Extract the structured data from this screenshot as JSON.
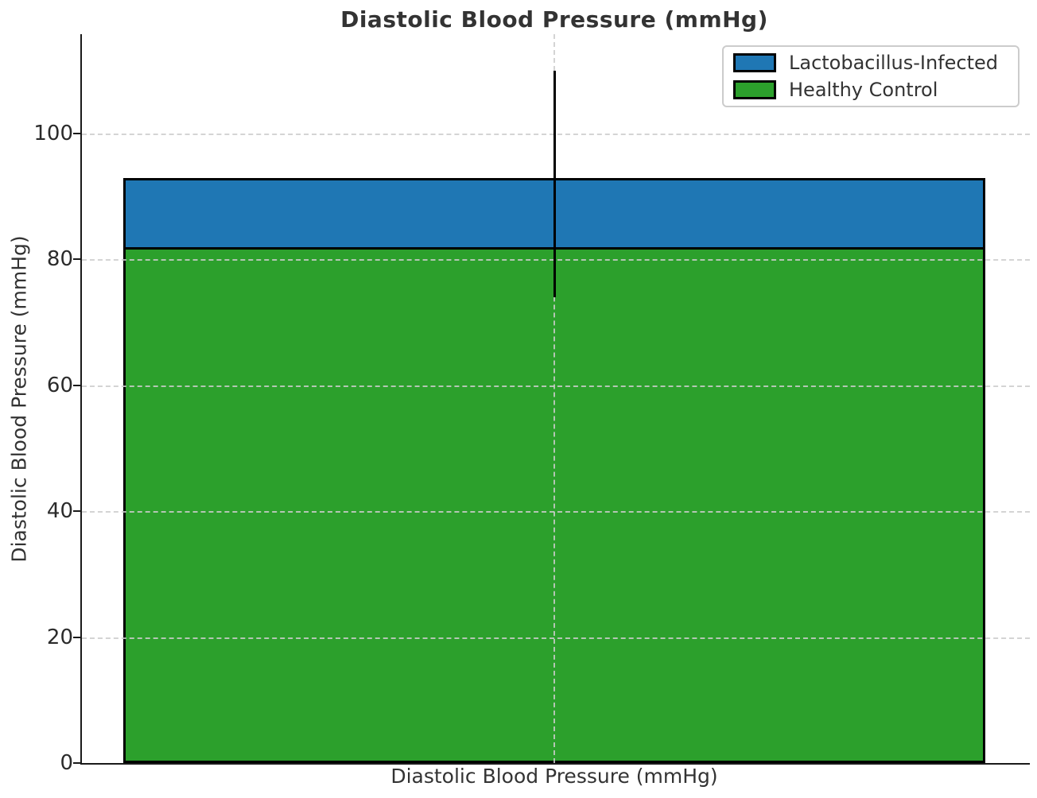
{
  "chart_data": {
    "type": "bar",
    "title": "Diastolic Blood Pressure (mmHg)",
    "xlabel": "Diastolic Blood Pressure (mmHg)",
    "ylabel": "Diastolic Blood Pressure (mmHg)",
    "categories": [
      "Diastolic Blood Pressure (mmHg)"
    ],
    "series": [
      {
        "name": "Lactobacillus-Infected",
        "values": [
          93
        ],
        "error": [
          17
        ],
        "color": "#1f77b4"
      },
      {
        "name": "Healthy Control",
        "values": [
          82
        ],
        "error": [
          8
        ],
        "color": "#2ca02c"
      }
    ],
    "ylim": [
      0,
      115.8
    ],
    "yticks": [
      0,
      20,
      40,
      60,
      80,
      100
    ],
    "ytick_labels": [
      "0",
      "20",
      "40",
      "60",
      "80",
      "100"
    ],
    "grid": "dashed gridlines on both axes, drawn above bars",
    "legend_position": "upper right",
    "bar_edge_color": "#000000",
    "error_bar_color": "#000000",
    "grid_color": "#cccccc",
    "text_color": "#333333",
    "background_color": "#ffffff"
  }
}
